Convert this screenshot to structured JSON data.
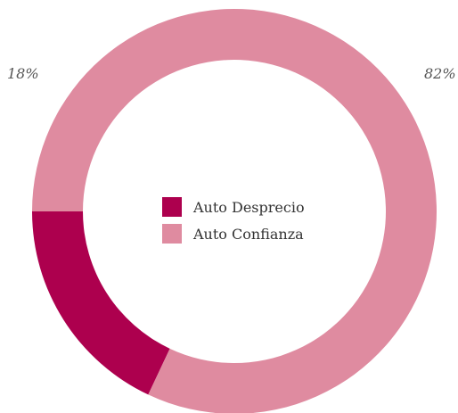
{
  "chart_data": {
    "type": "pie",
    "donut": true,
    "title": "",
    "categories": [
      "Auto Desprecio",
      "Auto Confianza"
    ],
    "values": [
      18,
      82
    ],
    "unit": "%",
    "labels": [
      "18%",
      "82%"
    ],
    "colors": [
      "#ad004e",
      "#df8ba0"
    ],
    "legend_position": "center"
  }
}
